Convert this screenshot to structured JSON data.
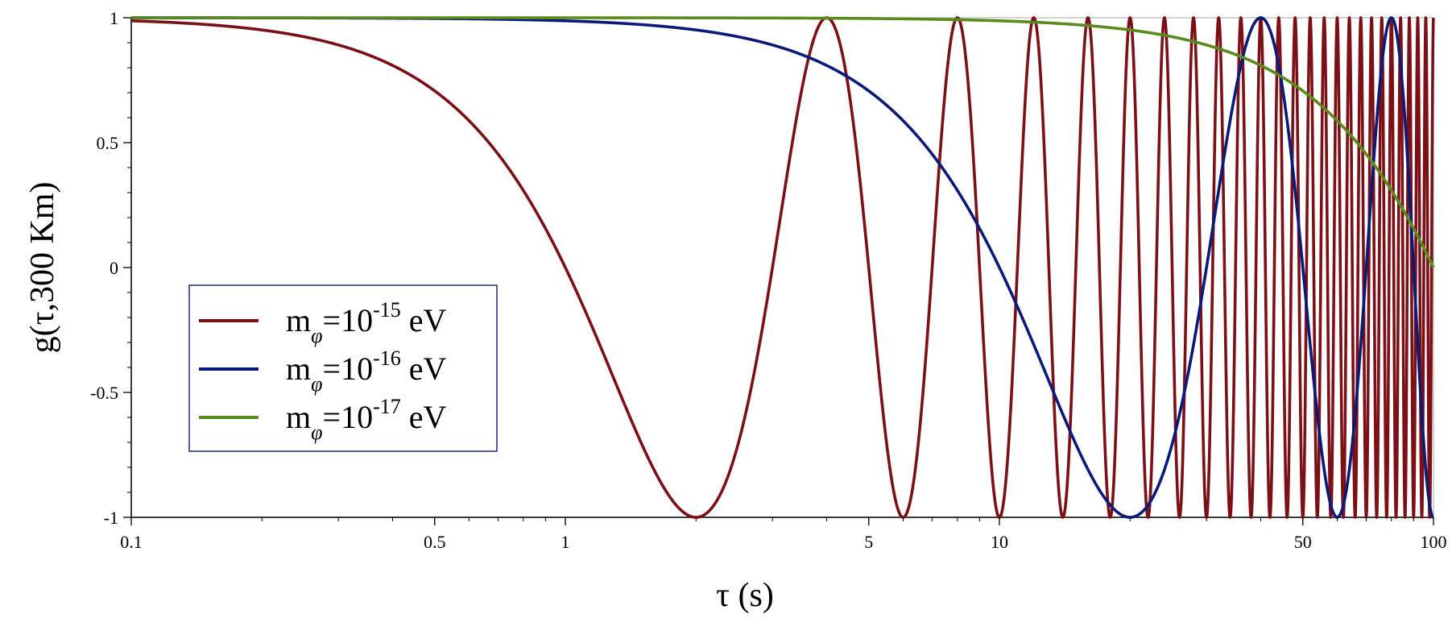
{
  "chart_data": {
    "type": "line",
    "xlabel": "τ (s)",
    "ylabel": "g(τ,300 Km)",
    "xscale": "log",
    "xlim": [
      0.1,
      100
    ],
    "ylim": [
      -1,
      1
    ],
    "x_ticks": [
      {
        "value": 0.1,
        "label": "0.1"
      },
      {
        "value": 0.5,
        "label": "0.5"
      },
      {
        "value": 1,
        "label": "1"
      },
      {
        "value": 5,
        "label": "5"
      },
      {
        "value": 10,
        "label": "10"
      },
      {
        "value": 50,
        "label": "50"
      },
      {
        "value": 100,
        "label": "100"
      }
    ],
    "y_ticks": [
      {
        "value": 1,
        "label": "1"
      },
      {
        "value": 0.5,
        "label": "0.5"
      },
      {
        "value": 0,
        "label": "0"
      },
      {
        "value": -0.5,
        "label": "-0.5"
      },
      {
        "value": -1,
        "label": "-1"
      }
    ],
    "legend_position": "left-middle",
    "series": [
      {
        "name": "m_φ=10^-15 eV",
        "base": "m",
        "subscript": "φ",
        "mid": "=10",
        "exponent": "-15",
        "unit": " eV",
        "color": "#7b1016",
        "half_period_s": 2.0
      },
      {
        "name": "m_φ=10^-16 eV",
        "base": "m",
        "subscript": "φ",
        "mid": "=10",
        "exponent": "-16",
        "unit": " eV",
        "color": "#0a1a7a",
        "half_period_s": 20.0
      },
      {
        "name": "m_φ=10^-17 eV",
        "base": "m",
        "subscript": "φ",
        "mid": "=10",
        "exponent": "-17",
        "unit": " eV",
        "color": "#5a8a1e",
        "half_period_s": 200.0
      }
    ]
  }
}
